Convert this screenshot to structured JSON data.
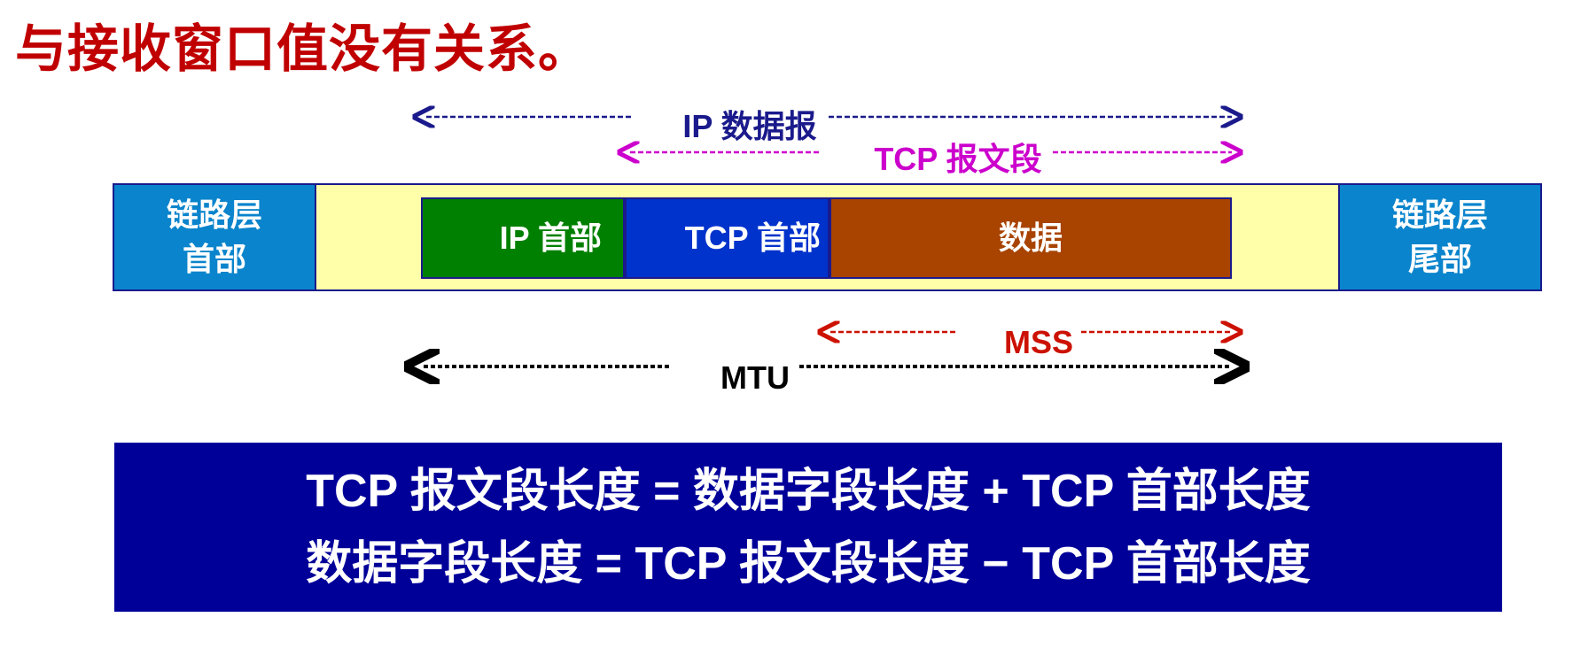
{
  "title": "与接收窗口值没有关系。",
  "colors": {
    "title": "#c00000",
    "ip_datagram": "#1a1a8c",
    "tcp_segment": "#cc00cc",
    "link_layer": "#0a84cc",
    "frame_body": "#ffffaa",
    "ip_header": "#008000",
    "tcp_header": "#0033cc",
    "data": "#a84300",
    "mss": "#cc1100",
    "mtu": "#000000",
    "formula_bg": "#000099"
  },
  "spans": {
    "ip_datagram": "IP 数据报",
    "tcp_segment": "TCP 报文段",
    "mss": "MSS",
    "mtu": "MTU"
  },
  "frame": {
    "link_header": "链路层\n首部",
    "link_header_l1": "链路层",
    "link_header_l2": "首部",
    "ip_header": "IP 首部",
    "tcp_header": "TCP 首部",
    "data": "数据",
    "link_trailer_l1": "链路层",
    "link_trailer_l2": "尾部"
  },
  "formulas": [
    "TCP 报文段长度 = 数据字段长度 + TCP 首部长度",
    "数据字段长度 = TCP 报文段长度 − TCP 首部长度"
  ]
}
